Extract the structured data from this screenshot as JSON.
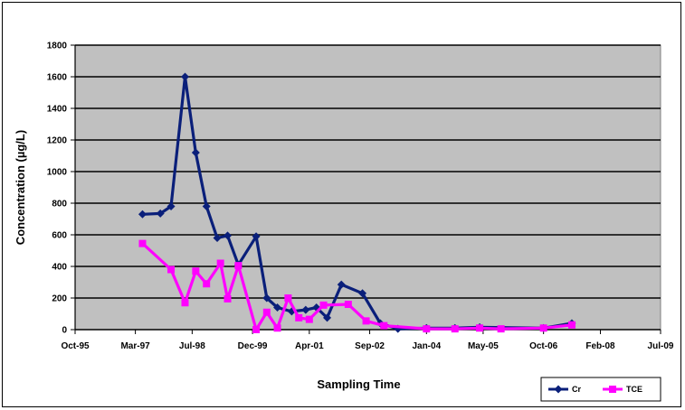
{
  "chart_data": {
    "type": "line",
    "title": "",
    "xlabel": "Sampling Time",
    "ylabel": "Concentration (µg/L)",
    "x_tick_labels": [
      "Oct-95",
      "Mar-97",
      "Jul-98",
      "Dec-99",
      "Apr-01",
      "Sep-02",
      "Jan-04",
      "May-05",
      "Oct-06",
      "Feb-08",
      "Jul-09"
    ],
    "x_tick_dates": [
      "1995-10-01",
      "1997-03-01",
      "1998-07-01",
      "1999-12-01",
      "2001-04-01",
      "2002-09-01",
      "2004-01-01",
      "2005-05-01",
      "2006-10-01",
      "2008-02-01",
      "2009-07-01"
    ],
    "ylim": [
      0,
      1800
    ],
    "y_ticks": [
      0,
      200,
      400,
      600,
      800,
      1000,
      1200,
      1400,
      1600,
      1800
    ],
    "plot_background": "#c0c0c0",
    "grid": true,
    "legend_position": "bottom-right",
    "series": [
      {
        "name": "Cr",
        "color": "#0a1f7a",
        "marker": "diamond",
        "points": [
          [
            "1997-05-01",
            730
          ],
          [
            "1997-10-01",
            735
          ],
          [
            "1998-01-01",
            780
          ],
          [
            "1998-05-01",
            1600
          ],
          [
            "1998-08-01",
            1120
          ],
          [
            "1998-11-01",
            780
          ],
          [
            "1999-02-01",
            580
          ],
          [
            "1999-05-01",
            595
          ],
          [
            "1999-08-01",
            410
          ],
          [
            "2000-01-01",
            590
          ],
          [
            "2000-04-01",
            200
          ],
          [
            "2000-07-01",
            140
          ],
          [
            "2000-11-01",
            115
          ],
          [
            "2001-03-01",
            125
          ],
          [
            "2001-06-01",
            140
          ],
          [
            "2001-09-01",
            75
          ],
          [
            "2002-01-01",
            285
          ],
          [
            "2002-07-01",
            230
          ],
          [
            "2002-12-01",
            40
          ],
          [
            "2003-05-01",
            5
          ],
          [
            "2004-01-01",
            10
          ],
          [
            "2004-09-01",
            10
          ],
          [
            "2005-04-01",
            15
          ],
          [
            "2006-10-01",
            10
          ],
          [
            "2007-06-01",
            40
          ]
        ]
      },
      {
        "name": "TCE",
        "color": "#ff00ff",
        "marker": "square",
        "points": [
          [
            "1997-05-01",
            545
          ],
          [
            "1998-01-01",
            380
          ],
          [
            "1998-05-01",
            170
          ],
          [
            "1998-08-01",
            370
          ],
          [
            "1998-11-01",
            290
          ],
          [
            "1999-03-01",
            420
          ],
          [
            "1999-05-01",
            195
          ],
          [
            "1999-08-01",
            405
          ],
          [
            "2000-01-01",
            0
          ],
          [
            "2000-04-01",
            110
          ],
          [
            "2000-07-01",
            10
          ],
          [
            "2000-10-01",
            200
          ],
          [
            "2001-01-01",
            75
          ],
          [
            "2001-04-01",
            65
          ],
          [
            "2001-08-01",
            155
          ],
          [
            "2002-03-01",
            160
          ],
          [
            "2002-08-01",
            55
          ],
          [
            "2003-01-01",
            25
          ],
          [
            "2004-01-01",
            5
          ],
          [
            "2004-09-01",
            5
          ],
          [
            "2005-04-01",
            10
          ],
          [
            "2005-10-01",
            5
          ],
          [
            "2006-10-01",
            10
          ],
          [
            "2007-06-01",
            30
          ]
        ]
      }
    ]
  }
}
